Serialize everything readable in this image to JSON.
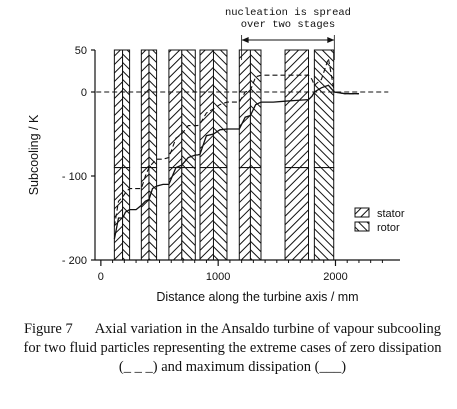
{
  "chart_data": {
    "type": "line",
    "xlabel": "Distance along the turbine axis / mm",
    "ylabel": "Subcooling / K",
    "xlim": [
      -50,
      2550
    ],
    "ylim": [
      -200,
      50
    ],
    "x_ticks": [
      0,
      1000,
      2000
    ],
    "x_minor_ticks": [
      100,
      200,
      300,
      400,
      500,
      600,
      700,
      800,
      900,
      1100,
      1200,
      1300,
      1400,
      1500,
      1600,
      1700,
      1800,
      1900,
      2100,
      2200,
      2300,
      2400
    ],
    "y_ticks": [
      -200,
      -100,
      0,
      50
    ],
    "legend": {
      "placement": "right",
      "entries": [
        {
          "label": "stator",
          "hatch": "forward"
        },
        {
          "label": "rotor",
          "hatch": "back"
        }
      ]
    },
    "blades": [
      {
        "kind": "stator",
        "x": [
          115,
          185
        ]
      },
      {
        "kind": "rotor",
        "x": [
          185,
          245
        ]
      },
      {
        "kind": "stator",
        "x": [
          345,
          410
        ]
      },
      {
        "kind": "rotor",
        "x": [
          410,
          475
        ]
      },
      {
        "kind": "stator",
        "x": [
          580,
          690
        ]
      },
      {
        "kind": "rotor",
        "x": [
          690,
          805
        ]
      },
      {
        "kind": "stator",
        "x": [
          845,
          960
        ]
      },
      {
        "kind": "rotor",
        "x": [
          960,
          1075
        ]
      },
      {
        "kind": "stator",
        "x": [
          1180,
          1275
        ]
      },
      {
        "kind": "rotor",
        "x": [
          1275,
          1365
        ]
      },
      {
        "kind": "stator",
        "x": [
          1570,
          1770
        ]
      },
      {
        "kind": "rotor",
        "x": [
          1820,
          1985
        ]
      }
    ],
    "annotation": {
      "text_lines": [
        "nucleation is spread",
        "over two stages"
      ],
      "arrow_from_x": 1200,
      "arrow_to_x": 1990
    },
    "series": [
      {
        "style": "solid",
        "x": [
          115,
          150,
          185,
          210,
          245,
          300,
          345,
          380,
          410,
          440,
          475,
          530,
          580,
          640,
          690,
          745,
          805,
          825,
          845,
          900,
          960,
          1015,
          1075,
          1130,
          1180,
          1230,
          1275,
          1320,
          1365,
          1470,
          1570,
          1670,
          1770,
          1800,
          1820,
          1880,
          1940,
          1990,
          2080,
          2200
        ],
        "y": [
          -175,
          -150,
          -150,
          -143,
          -140,
          -140,
          -135,
          -130,
          -128,
          -115,
          -112,
          -110,
          -110,
          -90,
          -87,
          -78,
          -75,
          -75,
          -74,
          -52,
          -50,
          -45,
          -44,
          -44,
          -44,
          -30,
          -28,
          -15,
          -12,
          -12,
          -11,
          -10,
          -9,
          -5,
          0,
          5,
          8,
          0,
          -2,
          -2
        ]
      },
      {
        "style": "dashed",
        "x": [
          115,
          150,
          185,
          220,
          245,
          300,
          345,
          380,
          410,
          440,
          475,
          530,
          580,
          640,
          690,
          745,
          805,
          825,
          845,
          900,
          960,
          1015,
          1075,
          1130,
          1180,
          1230,
          1275,
          1320,
          1365,
          1470,
          1570,
          1670,
          1770,
          1800,
          1820,
          1880,
          1940,
          1990,
          2080,
          2200
        ],
        "y": [
          -160,
          -130,
          -125,
          -118,
          -115,
          -115,
          -115,
          -100,
          -90,
          -85,
          -80,
          -80,
          -78,
          -55,
          -50,
          -40,
          -40,
          -40,
          -38,
          -25,
          -20,
          -15,
          -12,
          -12,
          -12,
          0,
          2,
          18,
          20,
          20,
          20,
          20,
          20,
          15,
          8,
          15,
          40,
          0,
          -2,
          -2
        ]
      },
      {
        "style": "dashed",
        "x": [
          -40,
          2450
        ],
        "y": [
          0,
          0
        ]
      }
    ]
  },
  "caption": {
    "figure_label": "Figure 7",
    "text": "Axial variation in the Ansaldo turbine of vapour subcooling for two fluid particles representing the extreme cases of zero dissipation (_ _ _) and maximum dissipation (___)"
  }
}
